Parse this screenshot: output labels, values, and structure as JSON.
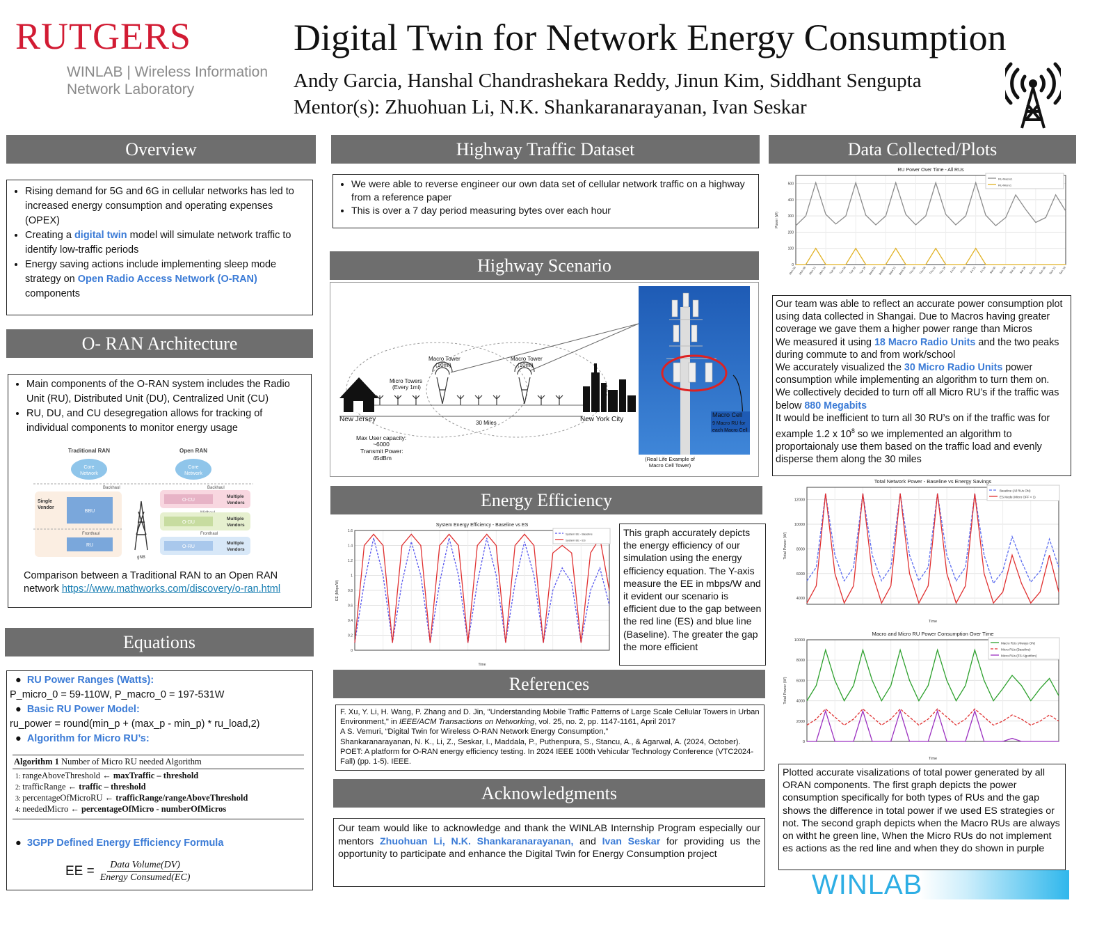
{
  "header": {
    "logo_text": "RUTGERS",
    "winlab_line1": "WINLAB | Wireless Information",
    "winlab_line2": "Network Laboratory",
    "title": "Digital Twin for Network Energy Consumption",
    "authors": "Andy Garcia, Hanshal Chandrashekara Reddy, Jinun Kim, Siddhant Sengupta",
    "mentors": "Mentor(s): Zhuohuan Li, N.K. Shankaranarayanan, Ivan Seskar",
    "icon": "radio-tower-icon"
  },
  "overview": {
    "heading": "Overview",
    "b1": "Rising demand for 5G and 6G in cellular networks has led to increased energy consumption and operating expenses (OPEX)",
    "b2_pre": "Creating a ",
    "b2_hl": "digital twin",
    "b2_post": " model will simulate network traffic to identify low-traffic periods",
    "b3_pre": "Energy saving actions include implementing sleep mode strategy on ",
    "b3_hl": "Open Radio Access Network (O-RAN)",
    "b3_post": " components"
  },
  "oran": {
    "heading": "O- RAN Architecture",
    "b1": "Main components of the O-RAN system includes the Radio Unit (RU), Distributed Unit (DU), Centralized Unit (CU)",
    "b2": "RU, DU, and CU desegregation allows for tracking of individual components to monitor energy usage",
    "diagram": {
      "trad_title": "Traditional RAN",
      "open_title": "Open RAN",
      "core": "Core",
      "network": "Network",
      "backhaul": "Backhaul",
      "midhaul": "Midhaul",
      "fronthaul": "Fronthaul",
      "single": "Single",
      "vendor": "Vendor",
      "bbu": "BBU",
      "ru": "RU",
      "ocu": "O-CU",
      "odu": "O-DU",
      "oru": "O-RU",
      "multiple": "Multiple",
      "vendors": "Vendors",
      "gnb": "gNB"
    },
    "caption_pre": "Comparison between a Traditional RAN to an Open RAN network ",
    "caption_link": "https://www.mathworks.com/discovery/o-ran.html"
  },
  "equations": {
    "heading": "Equations",
    "h1": "RU Power Ranges (Watts):",
    "l1": "P_micro_0 = 59-110W, P_macro_0 = 197-531W",
    "h2": "Basic RU Power Model:",
    "l2": "ru_power = round(min_p + (max_p - min_p) * ru_load,2)",
    "h3": "Algorithm for Micro RU’s:",
    "algo_title_b": "Algorithm 1",
    "algo_title": " Number of Micro RU needed Algorithm",
    "algo": [
      {
        "n": "1:",
        "a": "rangeAboveThreshold",
        "b": "maxTraffic – threshold"
      },
      {
        "n": "2:",
        "a": "trafficRange",
        "b": "traffic – threshold"
      },
      {
        "n": "3:",
        "a": "percentageOfMicroRU",
        "b": "trafficRange/rangeAboveThreshold"
      },
      {
        "n": "4:",
        "a": "neededMicro",
        "b": "percentageOfMicro - numberOfMicros"
      }
    ],
    "arrow": "←",
    "h4": "3GPP Defined Energy Efficiency Formula",
    "ee": "EE =",
    "num": "Data Volume(DV)",
    "den": "Energy Consumed(EC)"
  },
  "highway_dataset": {
    "heading": "Highway Traffic Dataset",
    "b1": "We were able to reverse engineer our own data set of cellular network traffic on a highway from a reference paper",
    "b2": "This is over a 7 day period measuring bytes over each hour"
  },
  "highway_scenario": {
    "heading": "Highway Scenario",
    "nj": "New Jersey",
    "ny": "New York City",
    "micro": "Micro Towers",
    "micro2": "(Every 1mi)",
    "macro": "Macro Tower",
    "macro2": "(10mi)",
    "miles": "30 Miles",
    "cap1": "Max User capacity:",
    "cap2": "~6000",
    "cap3": "Transmit Power:",
    "cap4": "45dBm",
    "cell1": "Macro Cell",
    "cell2": "9 Macro RU for",
    "cell3": "each Macro Cell",
    "photo1": "(Real Life Example of",
    "photo2": "Macro Cell Tower)"
  },
  "energy_eff": {
    "heading": "Energy Efficiency",
    "text": "This graph accurately depicts the energy efficiency of our simulation using the energy efficiency equation. The Y-axis measure the EE in mbps/W and it evident our scenario is efficient due to the gap between the red line (ES) and blue line (Baseline). The greater the gap the more efficient"
  },
  "references": {
    "heading": "References",
    "r1_pre": "F. Xu, Y. Li, H. Wang, P. Zhang and D. Jin, \"Understanding Mobile Traffic Patterns of Large Scale Cellular Towers in Urban Environment,\" in ",
    "r1_it": "IEEE/ACM Transactions on Networking",
    "r1_post": ", vol. 25, no. 2, pp. 1147-1161, April 2017",
    "r2": "A S. Vemuri, “Digital Twin for Wireless O-RAN Network Energy Consumption,”",
    "r3": "Shankaranarayanan, N. K., Li, Z., Seskar, I., Maddala, P., Puthenpura, S., Stancu, A., & Agarwal, A. (2024, October). POET: A platform for O-RAN energy efficiency testing. In 2024 IEEE 100th Vehicular Technology Conference (VTC2024-Fall) (pp. 1-5). IEEE."
  },
  "ack": {
    "heading": "Acknowledgments",
    "pre": "Our team would like to acknowledge and thank the WINLAB Internship Program especially our mentors ",
    "hl1": "Zhuohuan Li, N.K. Shankaranarayanan,",
    "mid": " and ",
    "hl2": "Ivan Seskar",
    "post": " for providing us the opportunity to participate and enhance the Digital Twin for Energy Consumption project"
  },
  "data_collected": {
    "heading": "Data Collected/Plots",
    "p1": "Our team was able to reflect an accurate power consumption plot using data collected in Shangai. Due to Macros having greater coverage we gave them a higher power range than Micros",
    "p2_pre": "We measured it using ",
    "p2_hl": "18 Macro Radio Units",
    "p2_post": " and the two peaks during commute to and from work/school",
    "p3_pre": "We accurately visualized the ",
    "p3_hl": "30 Micro Radio Units",
    "p3_post": " power consumption while implementing an algorithm to turn them on.",
    "p4_pre": "We collectively decided to turn off all Micro RU’s if the traffic was below ",
    "p4_hl": "880 Megabits",
    "p5_pre": "It would be inefficient to turn all 30 RU’s on if the traffic was for example 1.2 x 10",
    "p5_sup": "8",
    "p5_post": " so we implemented an algorithm to proportaionaly use them based on the traffic load and evenly disperse them along the 30 miles",
    "p6": "Plotted accurate visalizations of total power generated by all ORAN components. The first graph depicts the power consumption specifically for both types of RUs and the gap shows the difference in total power if we used ES strategies or not. The second graph depicts when the Macro RUs are always on witht he green line, When the Micro RUs do not implement es actions as the red line and when they do shown in purple",
    "winlab": "WINLAB"
  },
  "chart_data": [
    {
      "type": "line",
      "title": "RU Power Over Time - All RUs",
      "ylabel": "Power (W)",
      "ylim": [
        0,
        550
      ],
      "yticks": [
        0,
        100,
        200,
        300,
        400,
        500
      ],
      "categories": [
        "Mon 00",
        "Mon 06",
        "Mon 12",
        "Mon 18",
        "Tue 00",
        "Tue 06",
        "Tue 12",
        "Tue 18",
        "Wed 00",
        "Wed 06",
        "Wed 12",
        "Wed 18",
        "Thu 00",
        "Thu 06",
        "Thu 12",
        "Thu 18",
        "Fri 00",
        "Fri 06",
        "Fri 12",
        "Fri 18",
        "Sat 00",
        "Sat 06",
        "Sat 12",
        "Sat 18",
        "Sun 00",
        "Sun 06",
        "Sun 12",
        "Sun 18"
      ],
      "series": [
        {
          "name": "RU-Macro1",
          "values": [
            240,
            300,
            505,
            310,
            250,
            300,
            505,
            305,
            245,
            300,
            505,
            310,
            245,
            300,
            505,
            310,
            245,
            300,
            505,
            305,
            240,
            290,
            430,
            340,
            260,
            290,
            430,
            330
          ]
        },
        {
          "name": "RU-Micro1",
          "values": [
            0,
            0,
            100,
            0,
            0,
            0,
            100,
            0,
            0,
            0,
            100,
            0,
            0,
            0,
            100,
            0,
            0,
            0,
            100,
            0,
            0,
            0,
            0,
            0,
            0,
            0,
            0,
            0
          ]
        }
      ],
      "color": "#8c8c8c"
    },
    {
      "type": "line",
      "title": "System Energy Efficiency - Baseline vs ES",
      "xlabel": "Time",
      "ylabel": "EE (Mbps/W)",
      "ylim": [
        0,
        1.6
      ],
      "yticks": [
        0.0,
        0.2,
        0.4,
        0.6,
        0.8,
        1.0,
        1.2,
        1.4,
        1.6
      ],
      "series": [
        {
          "name": "System EE - Baseline",
          "values": [
            0.1,
            0.9,
            1.5,
            1.0,
            0.1,
            0.9,
            1.45,
            1.0,
            0.1,
            0.9,
            1.5,
            1.0,
            0.1,
            0.9,
            1.5,
            1.0,
            0.1,
            0.9,
            1.45,
            1.0,
            0.1,
            0.8,
            1.1,
            0.9,
            0.1,
            0.8,
            1.1,
            0.6
          ]
        },
        {
          "name": "System EE - ES",
          "values": [
            0.1,
            1.4,
            1.55,
            1.4,
            0.1,
            1.4,
            1.55,
            1.4,
            0.1,
            1.4,
            1.55,
            1.4,
            0.1,
            1.4,
            1.55,
            1.4,
            0.1,
            1.4,
            1.55,
            1.4,
            0.1,
            1.3,
            1.4,
            1.3,
            0.1,
            1.3,
            1.5,
            0.8
          ]
        }
      ]
    },
    {
      "type": "line",
      "title": "Total Network Power - Baseline vs Energy Savings",
      "xlabel": "Time",
      "ylabel": "Total Power (W)",
      "ylim": [
        3500,
        13000
      ],
      "yticks": [
        4000,
        6000,
        8000,
        10000,
        12000
      ],
      "series": [
        {
          "name": "Baseline (All RUs ON)",
          "values": [
            5400,
            6500,
            12500,
            7500,
            5400,
            6500,
            12500,
            7500,
            5400,
            6500,
            12500,
            7500,
            5400,
            6500,
            12500,
            7500,
            5400,
            6500,
            12500,
            7500,
            5200,
            6200,
            9000,
            7000,
            5300,
            6200,
            8800,
            6500
          ]
        },
        {
          "name": "ES Mode (Micro OFF < 1)",
          "values": [
            3600,
            5000,
            12500,
            6000,
            3600,
            5000,
            12500,
            6000,
            3600,
            5000,
            12500,
            6000,
            3600,
            5000,
            12500,
            6000,
            3600,
            5000,
            12500,
            6000,
            3600,
            4500,
            7500,
            5200,
            3600,
            4500,
            7500,
            4500
          ]
        }
      ]
    },
    {
      "type": "line",
      "title": "Macro and Micro RU Power Consumption Over Time",
      "xlabel": "Time",
      "ylabel": "Total Power (W)",
      "ylim": [
        0,
        10000
      ],
      "yticks": [
        0,
        2000,
        4000,
        6000,
        8000,
        10000
      ],
      "series": [
        {
          "name": "Macro RUs (Always ON)",
          "values": [
            4000,
            5500,
            9000,
            6000,
            4000,
            5500,
            9000,
            6000,
            4000,
            5500,
            9000,
            6000,
            4000,
            5500,
            9000,
            6000,
            4000,
            5500,
            9000,
            6000,
            4000,
            5200,
            6500,
            5500,
            4000,
            5200,
            6200,
            4500
          ]
        },
        {
          "name": "Micro RUs (Baseline)",
          "values": [
            1600,
            2200,
            3200,
            2400,
            1600,
            2200,
            3200,
            2400,
            1600,
            2200,
            3200,
            2400,
            1600,
            2200,
            3200,
            2400,
            1600,
            2200,
            3200,
            2400,
            1600,
            2000,
            2600,
            2200,
            1600,
            2000,
            2600,
            2000
          ]
        },
        {
          "name": "Micro RUs (ES Algorithm)",
          "values": [
            0,
            0,
            3000,
            0,
            0,
            0,
            3000,
            0,
            0,
            0,
            3000,
            0,
            0,
            0,
            3000,
            0,
            0,
            0,
            3000,
            0,
            0,
            0,
            300,
            0,
            0,
            0,
            0,
            0
          ]
        }
      ]
    }
  ]
}
